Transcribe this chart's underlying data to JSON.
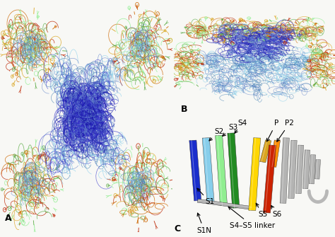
{
  "panel_A_label": "A",
  "panel_B_label": "B",
  "panel_C_label": "C",
  "background_color": "#f5f5f0",
  "label_fontsize": 9,
  "helix_colors": {
    "S1": "#1a2ecc",
    "S2": "#87CEEB",
    "S3": "#90EE90",
    "S4": "#228B22",
    "S5": "#FFD700",
    "S6": "#CC2200",
    "P": "#DAA520",
    "P2": "#FF8C00",
    "gray": "#A8A8A8"
  },
  "mol_colors": {
    "dark_blue": "#1a1aaa",
    "mid_blue": "#3a3acc",
    "light_blue": "#6688cc",
    "sky_blue": "#87CEEB",
    "steel_blue": "#4682B4",
    "green": "#5aaa44",
    "lime": "#90EE90",
    "yellow": "#DAA520",
    "orange": "#CD6600",
    "red": "#BB2200"
  }
}
